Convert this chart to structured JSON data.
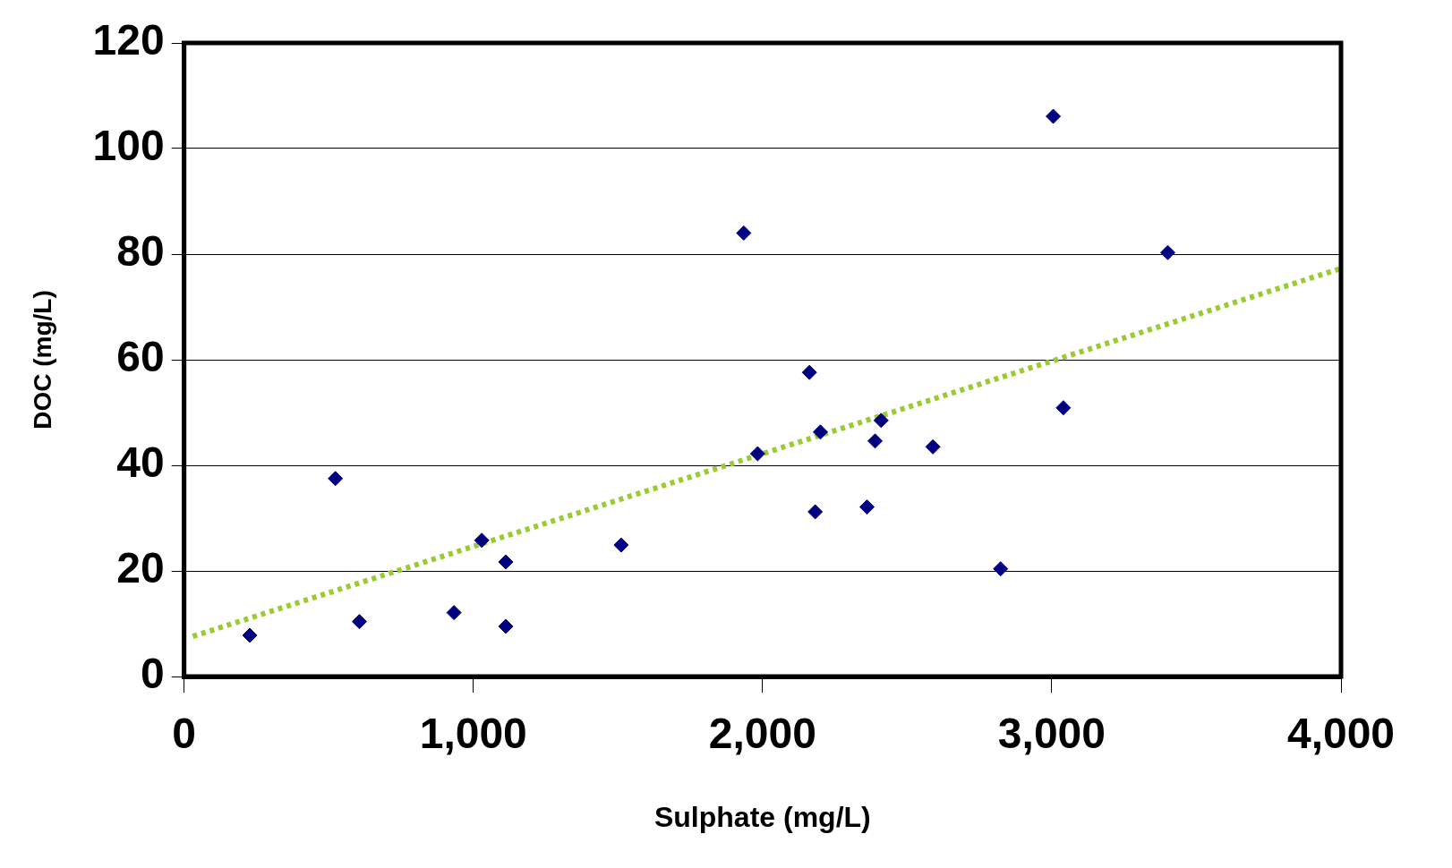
{
  "chart_data": {
    "type": "scatter",
    "xlabel": "Sulphate (mg/L)",
    "ylabel": "DOC (mg/L)",
    "xlim": [
      0,
      4000
    ],
    "xticks": [
      0,
      {
        "value": 1000,
        "label": "1,000"
      },
      {
        "value": 2000,
        "label": "2,000"
      },
      {
        "value": 3000,
        "label": "3,000"
      },
      {
        "value": 4000,
        "label": "4,000"
      }
    ],
    "ylim": [
      0,
      120
    ],
    "yticks": [
      0,
      20,
      40,
      60,
      80,
      100,
      120
    ],
    "grid": "y",
    "marker": "diamond",
    "legend": false,
    "series": [
      {
        "type": "scatter",
        "color": "#000080",
        "x": [
          227,
          523,
          606,
          933,
          1029,
          1112,
          1112,
          1511,
          1935,
          1983,
          2162,
          2182,
          2200,
          2361,
          2389,
          2410,
          2589,
          2823,
          3005,
          3040,
          3401
        ],
        "values": [
          7.8,
          37.5,
          10.4,
          12.1,
          25.8,
          21.7,
          9.5,
          24.9,
          84.0,
          42.2,
          57.6,
          31.2,
          46.3,
          32.1,
          44.6,
          48.5,
          43.5,
          20.4,
          106.1,
          50.9,
          80.3
        ]
      },
      {
        "type": "line",
        "color": "#99cc33",
        "marker": "none",
        "line_style": "dotted",
        "x": [
          30,
          4000
        ],
        "values": [
          7.6,
          77.3
        ]
      }
    ]
  }
}
